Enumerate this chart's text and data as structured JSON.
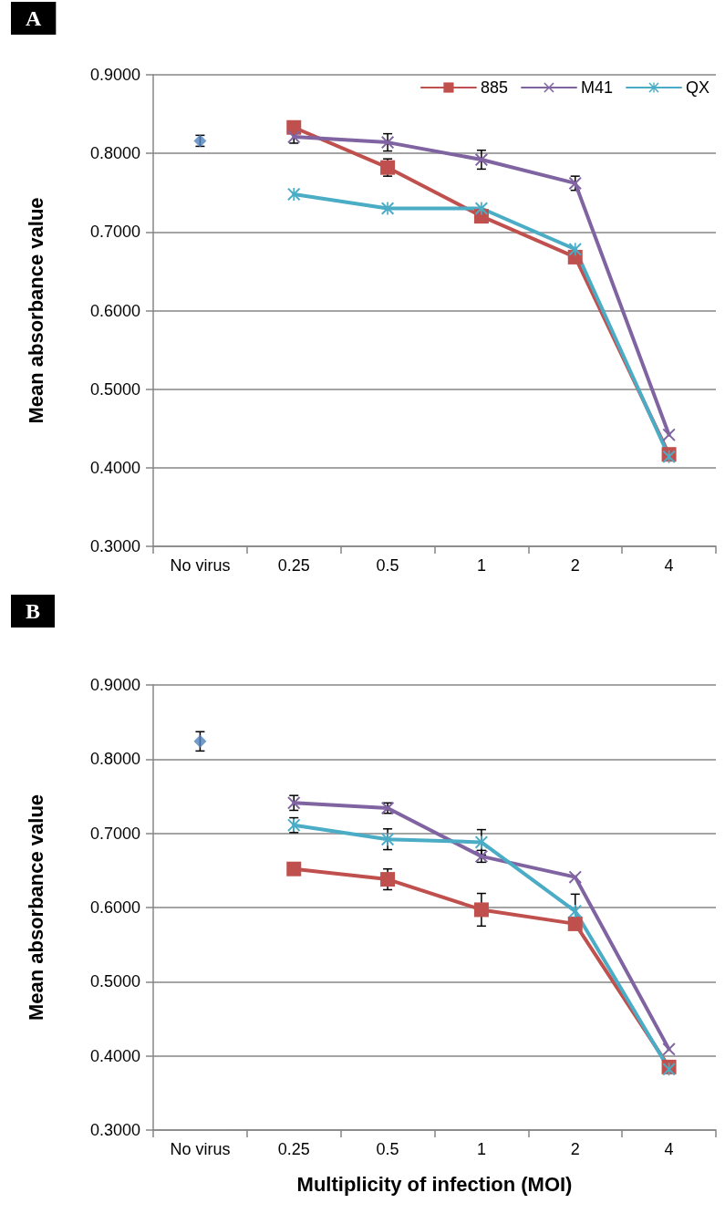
{
  "chart_data": [
    {
      "type": "line",
      "title": "A",
      "ylabel": "Mean absorbance value",
      "categories": [
        "No virus",
        "0.25",
        "0.5",
        "1",
        "2",
        "4"
      ],
      "ylim": [
        0.3,
        0.9
      ],
      "yticks": [
        {
          "value": 0.3,
          "label": "0.3000"
        },
        {
          "value": 0.4,
          "label": "0.4000"
        },
        {
          "value": 0.5,
          "label": "0.5000"
        },
        {
          "value": 0.6,
          "label": "0.6000"
        },
        {
          "value": 0.7,
          "label": "0.7000"
        },
        {
          "value": 0.8,
          "label": "0.8000"
        },
        {
          "value": 0.9,
          "label": "0.9000"
        }
      ],
      "grid": "y",
      "legend": "top right",
      "series": [
        {
          "type": "scatter",
          "marker": "diamond",
          "color": "#4f81bd",
          "values": [
            0.816,
            null,
            null,
            null,
            null,
            null
          ],
          "errors": [
            0.007,
            null,
            null,
            null,
            null,
            null
          ]
        },
        {
          "name": "885",
          "marker": "square",
          "color": "#c0504d",
          "values": [
            null,
            0.833,
            0.782,
            0.72,
            0.668,
            0.417
          ],
          "errors": [
            null,
            null,
            0.011,
            null,
            null,
            null
          ]
        },
        {
          "name": "M41",
          "marker": "cross",
          "color": "#8064a2",
          "values": [
            null,
            0.821,
            0.814,
            0.792,
            0.762,
            0.442
          ],
          "errors": [
            null,
            0.008,
            0.011,
            0.012,
            0.009,
            null
          ]
        },
        {
          "name": "QX",
          "marker": "star",
          "color": "#4bacc6",
          "values": [
            null,
            0.748,
            0.73,
            0.73,
            0.678,
            0.414
          ],
          "errors": [
            null,
            null,
            null,
            null,
            null,
            null
          ]
        }
      ]
    },
    {
      "type": "line",
      "title": "B",
      "ylabel": "Mean absorbance value",
      "xlabel": "Multiplicity of infection (MOI)",
      "categories": [
        "No virus",
        "0.25",
        "0.5",
        "1",
        "2",
        "4"
      ],
      "ylim": [
        0.3,
        0.9
      ],
      "yticks": [
        {
          "value": 0.3,
          "label": "0.3000"
        },
        {
          "value": 0.4,
          "label": "0.4000"
        },
        {
          "value": 0.5,
          "label": "0.5000"
        },
        {
          "value": 0.6,
          "label": "0.6000"
        },
        {
          "value": 0.7,
          "label": "0.7000"
        },
        {
          "value": 0.8,
          "label": "0.8000"
        },
        {
          "value": 0.9,
          "label": "0.9000"
        }
      ],
      "grid": "y",
      "legend": false,
      "series": [
        {
          "type": "scatter",
          "marker": "diamond",
          "color": "#4f81bd",
          "values": [
            0.824,
            null,
            null,
            null,
            null,
            null
          ],
          "errors": [
            0.013,
            null,
            null,
            null,
            null,
            null
          ]
        },
        {
          "marker": "square",
          "color": "#c0504d",
          "values": [
            null,
            0.652,
            0.638,
            0.597,
            0.578,
            0.385
          ],
          "errors": [
            null,
            null,
            0.014,
            0.022,
            null,
            null
          ]
        },
        {
          "marker": "cross",
          "color": "#8064a2",
          "values": [
            null,
            0.741,
            0.734,
            0.669,
            0.641,
            0.409
          ],
          "errors": [
            null,
            0.01,
            0.007,
            0.008,
            null,
            null
          ]
        },
        {
          "marker": "star",
          "color": "#4bacc6",
          "values": [
            null,
            0.711,
            0.692,
            0.688,
            0.595,
            0.382
          ],
          "errors": [
            null,
            0.01,
            0.014,
            0.017,
            0.023,
            null
          ]
        }
      ]
    }
  ]
}
